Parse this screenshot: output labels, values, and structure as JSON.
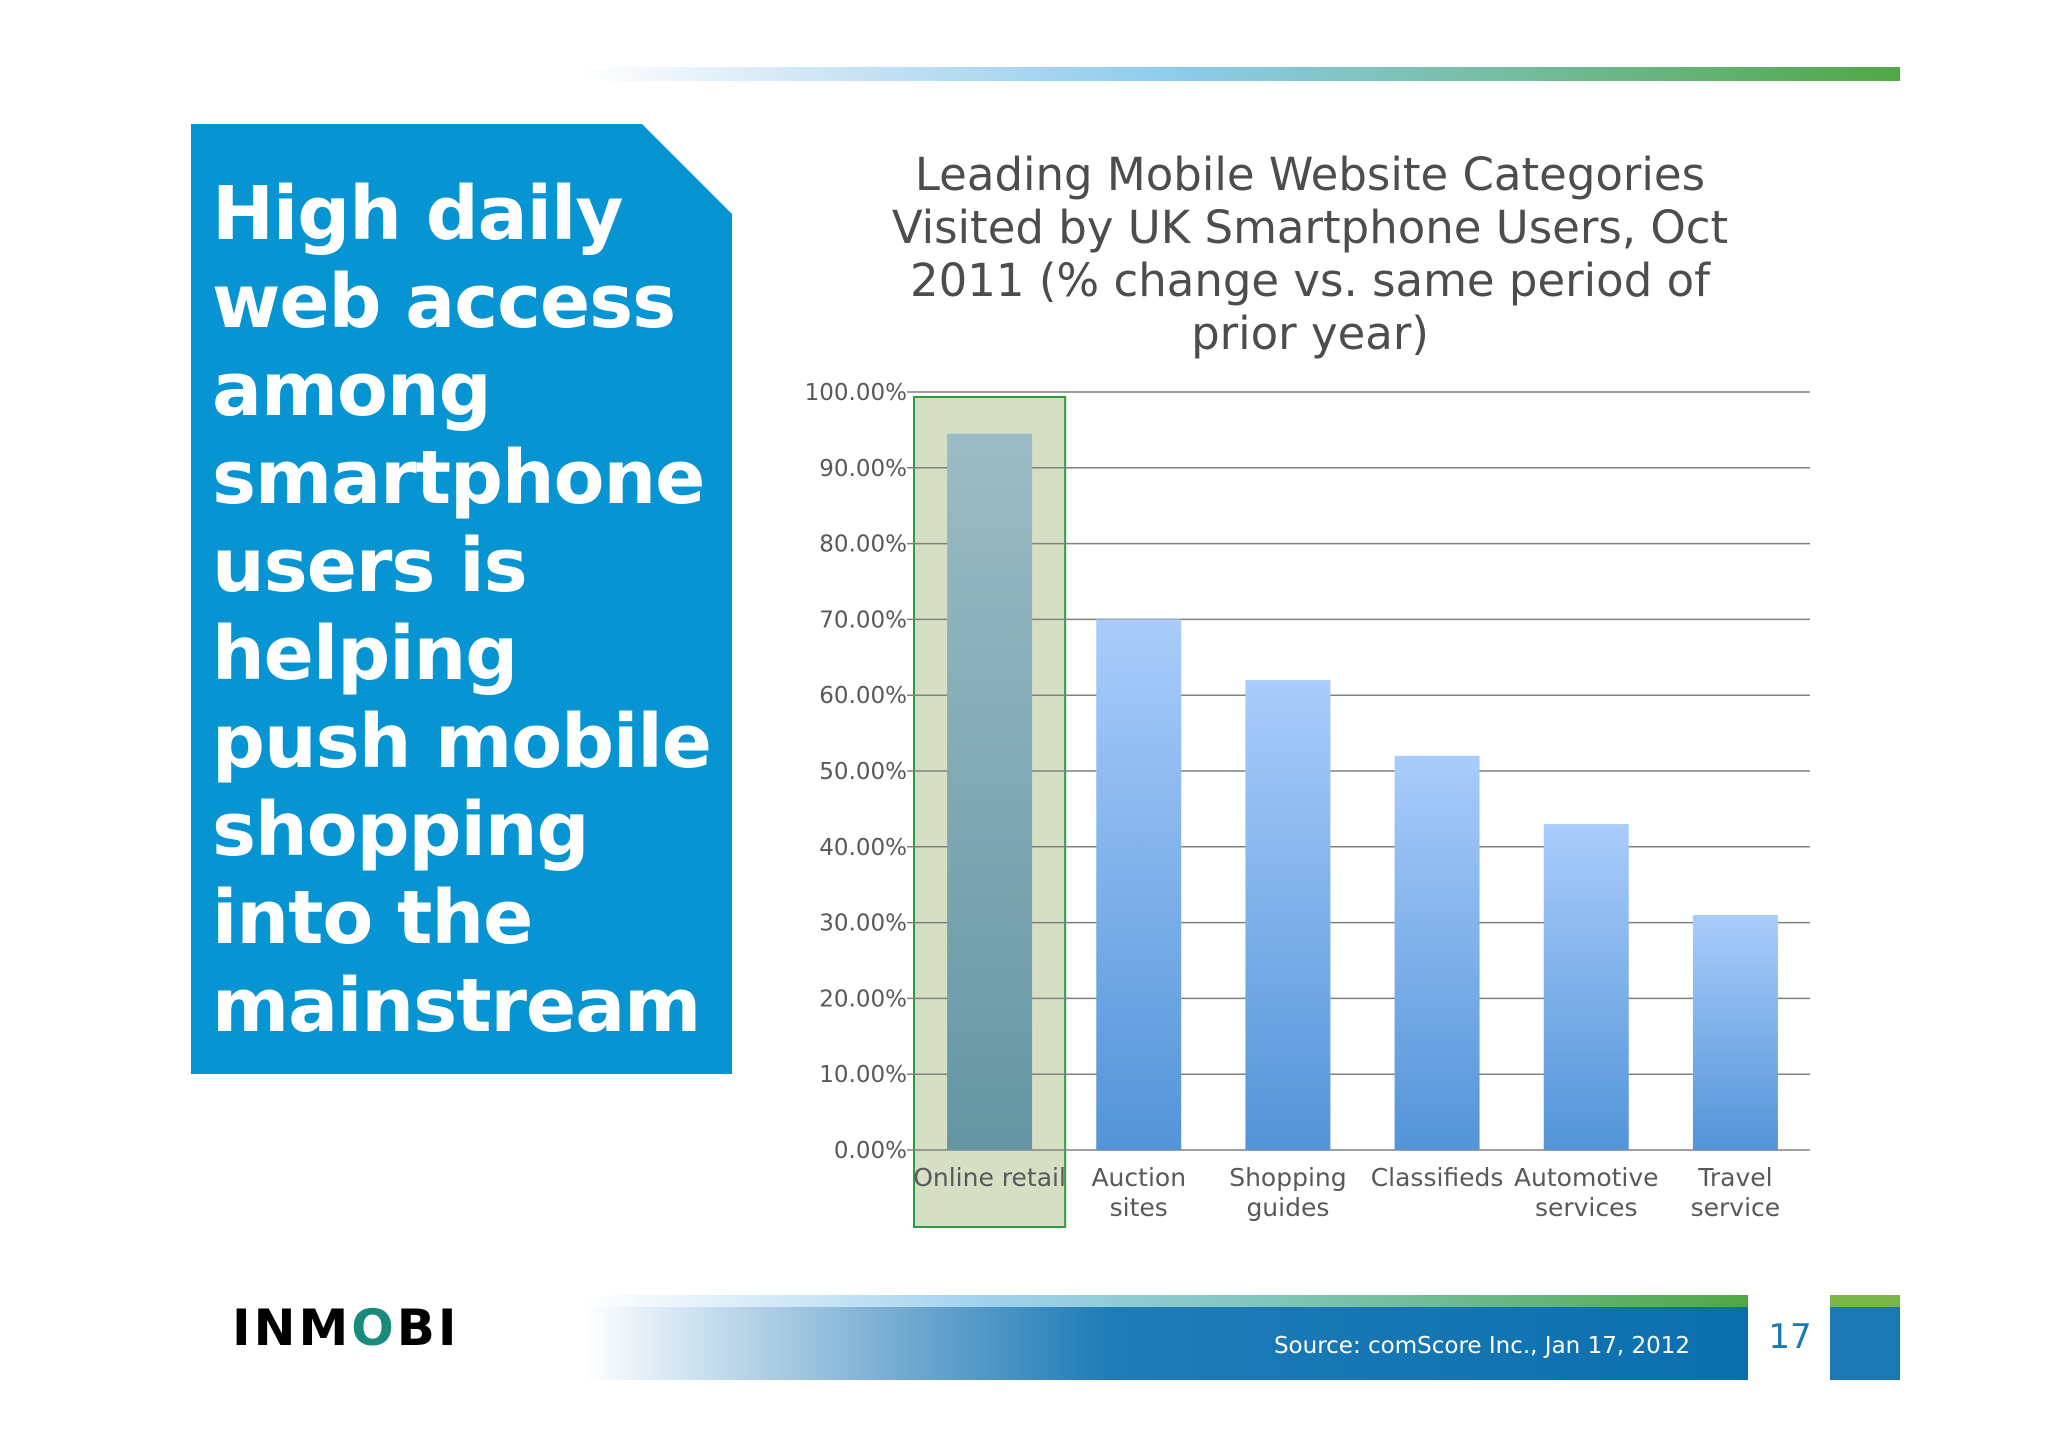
{
  "callout": {
    "text": "High daily web access among smartphone users is helping push mobile shopping into the mainstream"
  },
  "footer": {
    "source": "Source: comScore Inc., Jan 17, 2012",
    "page_number": "17",
    "logo_text": "INMOBI"
  },
  "chart_data": {
    "type": "bar",
    "title": "Leading Mobile Website Categories Visited by UK Smartphone Users, Oct 2011 (% change vs. same period of prior year)",
    "categories": [
      [
        "Online retail"
      ],
      [
        "Auction",
        "sites"
      ],
      [
        "Shopping",
        "guides"
      ],
      [
        "Classifieds"
      ],
      [
        "Automotive",
        "services"
      ],
      [
        "Travel",
        "service"
      ]
    ],
    "values": [
      94.5,
      70.0,
      62.0,
      52.0,
      43.0,
      31.0
    ],
    "ylim": [
      0,
      100
    ],
    "yticks": [
      "0.00%",
      "10.00%",
      "20.00%",
      "30.00%",
      "40.00%",
      "50.00%",
      "60.00%",
      "70.00%",
      "80.00%",
      "90.00%",
      "100.00%"
    ],
    "grid": true,
    "highlight_index": 0,
    "colors": {
      "bar_top": "#a9ccfb",
      "bar_bottom": "#5394d8",
      "highlight_bar": "#79a3ae",
      "highlight_box_fill": "#d6dec4",
      "highlight_box_stroke": "#2e9e3a",
      "grid": "#808080",
      "label": "#595959"
    }
  }
}
